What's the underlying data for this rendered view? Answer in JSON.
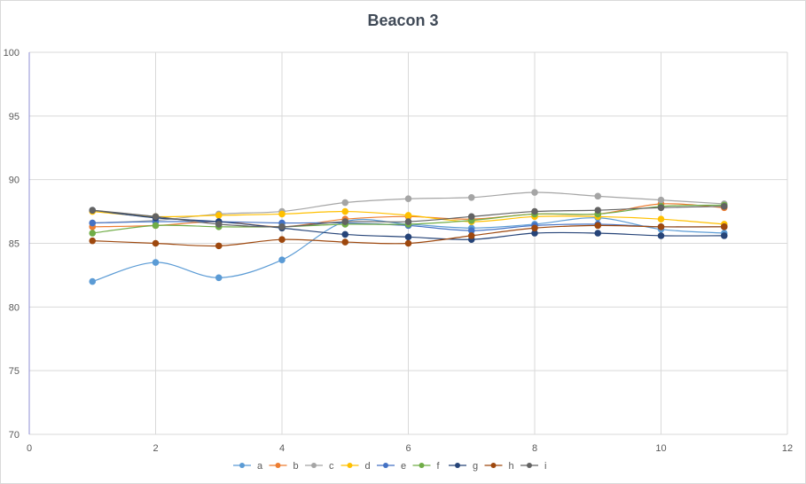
{
  "chart_data": {
    "type": "line",
    "title": "Beacon 3",
    "xlabel": "",
    "ylabel": "",
    "xlim": [
      0,
      12
    ],
    "ylim": [
      70,
      100
    ],
    "x_ticks": [
      "0",
      "2",
      "4",
      "6",
      "8",
      "10",
      "12"
    ],
    "y_ticks": [
      "70",
      "75",
      "80",
      "85",
      "90",
      "95",
      "100"
    ],
    "grid": true,
    "legend_position": "bottom",
    "x": [
      1,
      2,
      3,
      4,
      5,
      6,
      7,
      8,
      9,
      10,
      11
    ],
    "series": [
      {
        "name": "a",
        "color": "#5b9bd5",
        "values": [
          82.0,
          83.5,
          82.3,
          83.7,
          86.7,
          86.5,
          86.2,
          86.5,
          87.0,
          86.1,
          85.8
        ]
      },
      {
        "name": "b",
        "color": "#ed7d31",
        "values": [
          86.3,
          86.4,
          86.7,
          86.3,
          86.9,
          87.1,
          86.9,
          87.3,
          87.3,
          88.1,
          87.8
        ]
      },
      {
        "name": "c",
        "color": "#a5a5a5",
        "values": [
          86.6,
          86.8,
          87.3,
          87.5,
          88.2,
          88.5,
          88.6,
          89.0,
          88.7,
          88.4,
          88.1
        ]
      },
      {
        "name": "d",
        "color": "#ffc000",
        "values": [
          87.5,
          87.1,
          87.2,
          87.3,
          87.5,
          87.2,
          86.7,
          87.1,
          87.1,
          86.9,
          86.5
        ]
      },
      {
        "name": "e",
        "color": "#4472c4",
        "values": [
          86.6,
          86.7,
          86.7,
          86.6,
          86.6,
          86.4,
          86.0,
          86.4,
          86.5,
          86.3,
          86.3
        ]
      },
      {
        "name": "f",
        "color": "#70ad47",
        "values": [
          85.8,
          86.4,
          86.3,
          86.3,
          86.5,
          86.5,
          86.8,
          87.3,
          87.3,
          87.9,
          88.0
        ]
      },
      {
        "name": "g",
        "color": "#264478",
        "values": [
          87.6,
          87.0,
          86.7,
          86.2,
          85.7,
          85.5,
          85.3,
          85.8,
          85.8,
          85.6,
          85.6
        ]
      },
      {
        "name": "h",
        "color": "#9e480e",
        "values": [
          85.2,
          85.0,
          84.8,
          85.3,
          85.1,
          85.0,
          85.6,
          86.2,
          86.4,
          86.3,
          86.3
        ]
      },
      {
        "name": "i",
        "color": "#636363",
        "values": [
          87.6,
          87.1,
          86.5,
          86.3,
          86.7,
          86.7,
          87.1,
          87.5,
          87.6,
          87.8,
          87.9
        ]
      }
    ]
  }
}
